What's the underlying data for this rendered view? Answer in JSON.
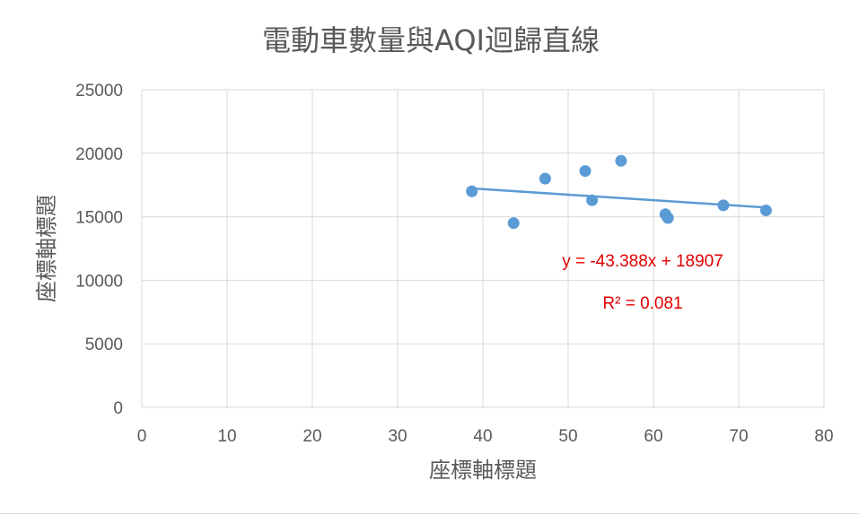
{
  "chart_data": {
    "type": "scatter",
    "title": "電動車數量與AQI迴歸直線",
    "xlabel": "座標軸標題",
    "ylabel": "座標軸標題",
    "xlim": [
      0,
      80
    ],
    "ylim": [
      0,
      25000
    ],
    "x_ticks": [
      0,
      10,
      20,
      30,
      40,
      50,
      60,
      70,
      80
    ],
    "y_ticks": [
      0,
      5000,
      10000,
      15000,
      20000,
      25000
    ],
    "grid": true,
    "points": [
      {
        "x": 38.7,
        "y": 17000
      },
      {
        "x": 43.6,
        "y": 14500
      },
      {
        "x": 47.3,
        "y": 18000
      },
      {
        "x": 52.0,
        "y": 18600
      },
      {
        "x": 52.8,
        "y": 16300
      },
      {
        "x": 56.2,
        "y": 19400
      },
      {
        "x": 61.4,
        "y": 15200
      },
      {
        "x": 61.7,
        "y": 14900
      },
      {
        "x": 68.2,
        "y": 15900
      },
      {
        "x": 73.2,
        "y": 15500
      }
    ],
    "trendline": {
      "slope": -43.388,
      "intercept": 18907
    },
    "equation_label": "y = -43.388x + 18907",
    "r2_label": "R² = 0.081",
    "colors": {
      "points": "#5b9bd5",
      "trendline": "#5b9bd5",
      "annotation": "#e00000",
      "grid": "#d9d9d9",
      "text": "#595959"
    }
  }
}
